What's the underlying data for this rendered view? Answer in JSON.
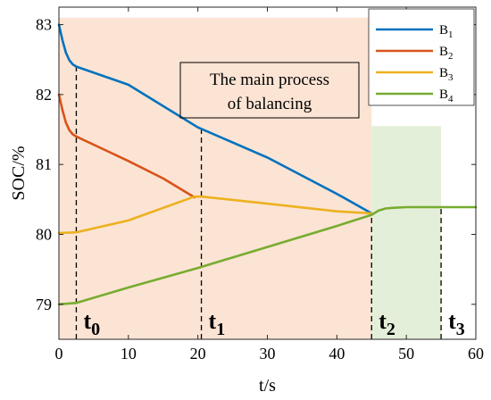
{
  "chart_data": {
    "type": "line",
    "xlabel": "t/s",
    "ylabel": "SOC/%",
    "xlim": [
      0,
      60
    ],
    "ylim": [
      78.5,
      83.25
    ],
    "x_ticks": [
      0,
      10,
      20,
      30,
      40,
      50,
      60
    ],
    "y_ticks": [
      79,
      80,
      81,
      82,
      83
    ],
    "grid": false,
    "legend_position": "top-right",
    "series": [
      {
        "name": "B1",
        "color": "#0072BD",
        "points": [
          [
            0,
            83.0
          ],
          [
            0.5,
            82.78
          ],
          [
            1.0,
            82.6
          ],
          [
            1.5,
            82.49
          ],
          [
            2.0,
            82.43
          ],
          [
            2.5,
            82.4
          ],
          [
            10,
            82.14
          ],
          [
            20,
            81.53
          ],
          [
            30,
            81.1
          ],
          [
            40,
            80.58
          ],
          [
            45,
            80.3
          ]
        ]
      },
      {
        "name": "B2",
        "color": "#D95319",
        "points": [
          [
            0,
            82.0
          ],
          [
            0.5,
            81.78
          ],
          [
            1.0,
            81.6
          ],
          [
            1.5,
            81.49
          ],
          [
            2.0,
            81.43
          ],
          [
            2.5,
            81.4
          ],
          [
            10,
            81.05
          ],
          [
            15,
            80.8
          ],
          [
            19.5,
            80.53
          ]
        ]
      },
      {
        "name": "B3",
        "color": "#EDB120",
        "points": [
          [
            0,
            80.02
          ],
          [
            2.5,
            80.03
          ],
          [
            10,
            80.2
          ],
          [
            19.5,
            80.54
          ],
          [
            20.5,
            80.54
          ],
          [
            30,
            80.44
          ],
          [
            40,
            80.33
          ],
          [
            45,
            80.3
          ]
        ]
      },
      {
        "name": "B4",
        "color": "#77AC30",
        "points": [
          [
            0,
            79.0
          ],
          [
            2.5,
            79.02
          ],
          [
            10,
            79.24
          ],
          [
            20,
            79.52
          ],
          [
            30,
            79.82
          ],
          [
            40,
            80.12
          ],
          [
            45,
            80.28
          ],
          [
            46,
            80.34
          ],
          [
            47,
            80.37
          ],
          [
            48,
            80.38
          ],
          [
            50,
            80.39
          ],
          [
            55,
            80.39
          ],
          [
            60,
            80.39
          ]
        ]
      }
    ],
    "regions": [
      {
        "x": [
          0,
          45
        ],
        "y": [
          78.5,
          83.1
        ],
        "color": "#FCE4D4"
      },
      {
        "x": [
          45,
          55
        ],
        "y": [
          78.5,
          81.55
        ],
        "color": "#E4EFD9"
      }
    ],
    "markers": [
      {
        "x": 2.5,
        "y_from": 78.5,
        "y_to": 82.4,
        "label": "t",
        "sub": "0"
      },
      {
        "x": 20.5,
        "y_from": 78.5,
        "y_to": 81.53,
        "label": "t",
        "sub": "1"
      },
      {
        "x": 45,
        "y_from": 78.5,
        "y_to": 80.3,
        "label": "t",
        "sub": "2"
      },
      {
        "x": 55,
        "y_from": 78.5,
        "y_to": 80.39,
        "label": "t",
        "sub": "3"
      }
    ],
    "annotation": {
      "lines": [
        "The main process",
        "of balancing"
      ]
    }
  }
}
